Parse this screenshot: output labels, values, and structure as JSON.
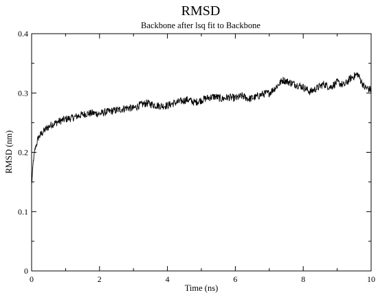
{
  "chart_data": {
    "type": "line",
    "title": "RMSD",
    "subtitle": "Backbone after lsq fit to Backbone",
    "xlabel": "Time (ns)",
    "ylabel": "RMSD (nm)",
    "xlim": [
      0,
      10
    ],
    "ylim": [
      0,
      0.4
    ],
    "xticks": [
      0,
      2,
      4,
      6,
      8,
      10
    ],
    "xtick_labels": [
      "0",
      "2",
      "4",
      "6",
      "8",
      "10"
    ],
    "yticks": [
      0,
      0.1,
      0.2,
      0.3,
      0.4
    ],
    "ytick_labels": [
      "0",
      "0.1",
      "0.2",
      "0.3",
      "0.4"
    ],
    "grid": false,
    "line_color": "#000000",
    "series": [
      {
        "x": [
          0,
          0.05,
          0.1,
          0.15,
          0.2,
          0.3,
          0.4,
          0.5,
          0.6,
          0.8,
          1.0,
          1.2,
          1.4,
          1.6,
          1.8,
          2.0,
          2.2,
          2.4,
          2.6,
          2.8,
          3.0,
          3.2,
          3.4,
          3.6,
          3.8,
          4.0,
          4.2,
          4.4,
          4.6,
          4.8,
          5.0,
          5.2,
          5.4,
          5.6,
          5.8,
          6.0,
          6.2,
          6.4,
          6.6,
          6.8,
          7.0,
          7.2,
          7.4,
          7.6,
          7.8,
          8.0,
          8.2,
          8.4,
          8.6,
          8.8,
          9.0,
          9.2,
          9.4,
          9.6,
          9.8,
          10.0
        ],
        "values": [
          0.145,
          0.185,
          0.205,
          0.215,
          0.225,
          0.232,
          0.238,
          0.243,
          0.247,
          0.252,
          0.256,
          0.258,
          0.262,
          0.265,
          0.266,
          0.265,
          0.268,
          0.27,
          0.272,
          0.275,
          0.274,
          0.28,
          0.283,
          0.28,
          0.278,
          0.279,
          0.283,
          0.286,
          0.289,
          0.284,
          0.288,
          0.292,
          0.294,
          0.29,
          0.293,
          0.291,
          0.295,
          0.29,
          0.293,
          0.298,
          0.3,
          0.31,
          0.322,
          0.318,
          0.314,
          0.31,
          0.302,
          0.308,
          0.315,
          0.31,
          0.318,
          0.313,
          0.325,
          0.332,
          0.31,
          0.305
        ]
      }
    ]
  }
}
